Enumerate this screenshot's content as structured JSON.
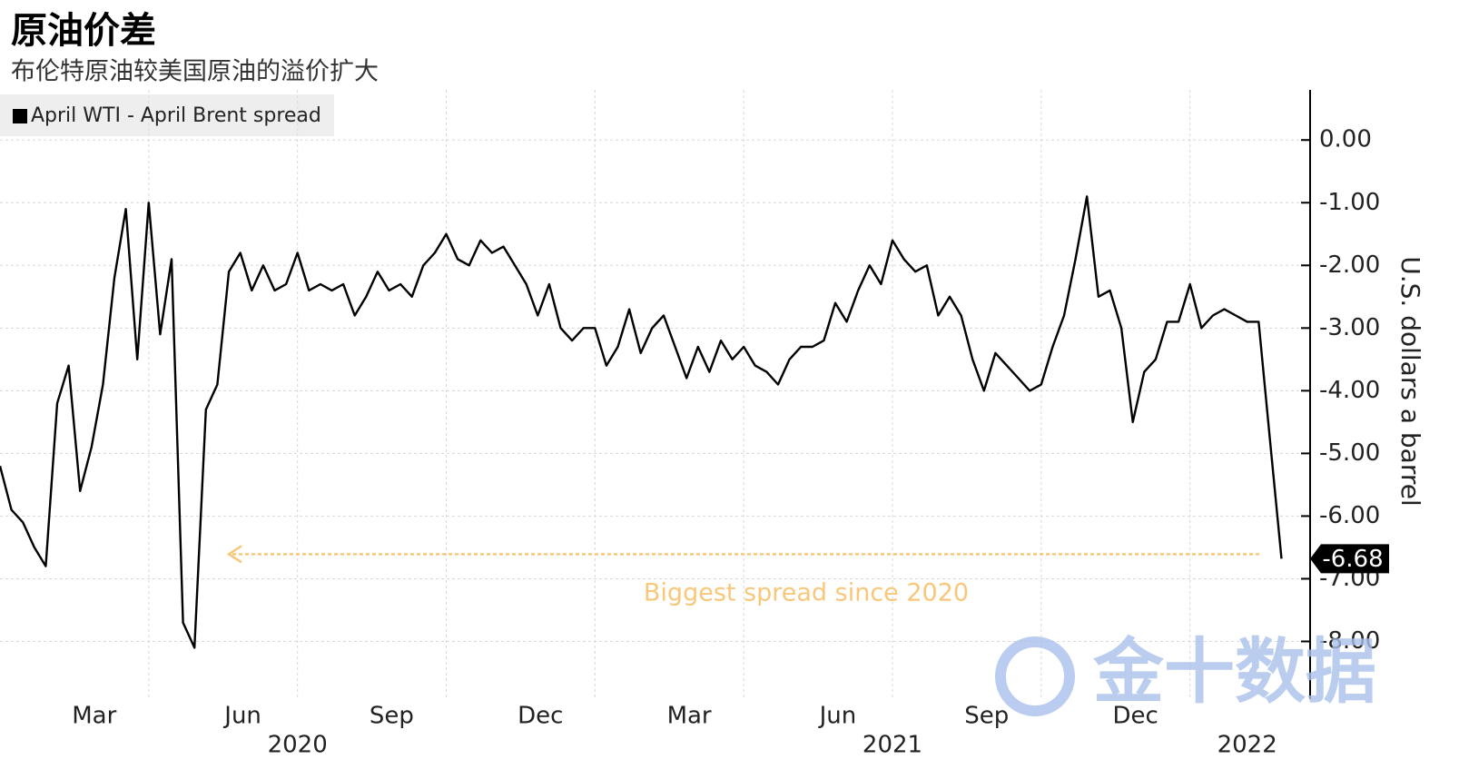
{
  "chart_data": {
    "type": "line",
    "title": "原油价差",
    "subtitle": "布伦特原油较美国原油的溢价扩大",
    "y_axis_label": "U.S. dollars a barrel",
    "annotation": "Biggest spread since 2020",
    "annotation_color": "#f8c77a",
    "watermark": "金十数据",
    "legend_position": "upper left",
    "grid": true,
    "series": [
      {
        "name": "April WTI - April Brent spread",
        "color": "#000000",
        "values": [
          -5.2,
          -5.9,
          -6.1,
          -6.5,
          -6.8,
          -4.2,
          -3.6,
          -5.6,
          -4.9,
          -3.9,
          -2.2,
          -1.1,
          -3.5,
          -1.0,
          -3.1,
          -1.9,
          -7.7,
          -8.1,
          -4.3,
          -3.9,
          -2.1,
          -1.8,
          -2.4,
          -2.0,
          -2.4,
          -2.3,
          -1.8,
          -2.4,
          -2.3,
          -2.4,
          -2.3,
          -2.8,
          -2.5,
          -2.1,
          -2.4,
          -2.3,
          -2.5,
          -2.0,
          -1.8,
          -1.5,
          -1.9,
          -2.0,
          -1.6,
          -1.8,
          -1.7,
          -2.0,
          -2.3,
          -2.8,
          -2.3,
          -3.0,
          -3.2,
          -3.0,
          -3.0,
          -3.6,
          -3.3,
          -2.7,
          -3.4,
          -3.0,
          -2.8,
          -3.3,
          -3.8,
          -3.3,
          -3.7,
          -3.2,
          -3.5,
          -3.3,
          -3.6,
          -3.7,
          -3.9,
          -3.5,
          -3.3,
          -3.3,
          -3.2,
          -2.6,
          -2.9,
          -2.4,
          -2.0,
          -2.3,
          -1.6,
          -1.9,
          -2.1,
          -2.0,
          -2.8,
          -2.5,
          -2.8,
          -3.5,
          -4.0,
          -3.4,
          -3.6,
          -3.8,
          -4.0,
          -3.9,
          -3.3,
          -2.8,
          -1.9,
          -0.9,
          -2.5,
          -2.4,
          -3.0,
          -4.5,
          -3.7,
          -3.5,
          -2.9,
          -2.9,
          -2.3,
          -3.0,
          -2.8,
          -2.7,
          -2.8,
          -2.9,
          -2.9,
          -4.8,
          -6.68
        ]
      }
    ],
    "xlim": [
      0,
      114.5
    ],
    "xticks": [
      {
        "value": 13,
        "label": "Mar"
      },
      {
        "value": 26,
        "label": "Jun"
      },
      {
        "value": 39,
        "label": "Sep"
      },
      {
        "value": 52,
        "label": "Dec"
      },
      {
        "value": 65,
        "label": "Mar"
      },
      {
        "value": 78,
        "label": "Jun"
      },
      {
        "value": 91,
        "label": "Sep"
      },
      {
        "value": 104,
        "label": "Dec"
      }
    ],
    "xticks_year": [
      {
        "value": 26,
        "label": "2020"
      },
      {
        "value": 78,
        "label": "2021"
      },
      {
        "value": 109,
        "label": "2022"
      }
    ],
    "ylim": [
      -8.5,
      0.8
    ],
    "yticks": [
      {
        "value": 0,
        "label": "0.00"
      },
      {
        "value": -1,
        "label": "-1.00"
      },
      {
        "value": -2,
        "label": "-2.00"
      },
      {
        "value": -3,
        "label": "-3.00"
      },
      {
        "value": -4,
        "label": "-4.00"
      },
      {
        "value": -5,
        "label": "-5.00"
      },
      {
        "value": -6,
        "label": "-6.00"
      },
      {
        "value": -7,
        "label": "-7.00"
      },
      {
        "value": -8,
        "label": "-8.00"
      }
    ]
  }
}
